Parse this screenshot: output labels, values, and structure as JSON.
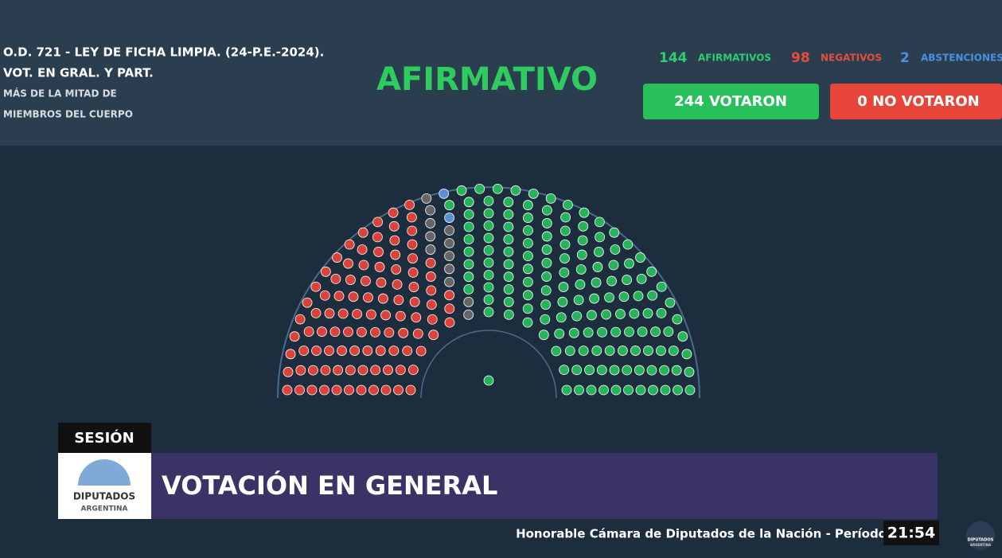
{
  "header": {
    "title_line1": "O.D. 721 - LEY DE FICHA LIMPIA. (24-P.E.-2024).",
    "title_line2": "VOT. EN GRAL. Y PART.",
    "majority_line1": "MÁS DE LA MITAD DE",
    "majority_line2": "MIEMBROS DEL CUERPO",
    "result": "AFIRMATIVO"
  },
  "tally": {
    "afirmativos": {
      "count": 144,
      "label": "AFIRMATIVOS"
    },
    "negativos": {
      "count": 98,
      "label": "NEGATIVOS"
    },
    "abstenciones": {
      "count": 2,
      "label": "ABSTENCIONES"
    },
    "votaron": {
      "count": 244,
      "label": "VOTARON"
    },
    "no_votaron": {
      "count": 0,
      "label": "NO VOTARON"
    }
  },
  "lower_third": {
    "tag": "SESIÓN",
    "title": "VOTACIÓN EN GENERAL",
    "ticker": "Honorable Cámara de Diputados de la Nación - Período",
    "clock": "21:54",
    "logo_line1": "DIPUTADOS",
    "logo_line2": "ARGENTINA"
  }
}
